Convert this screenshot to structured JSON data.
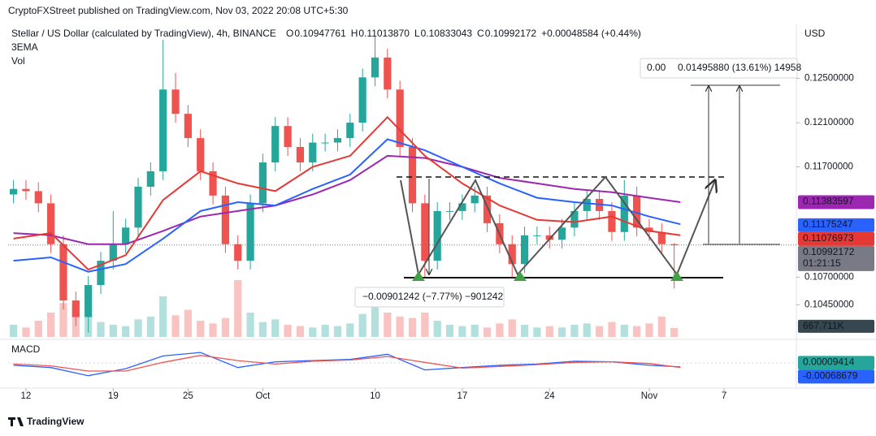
{
  "header": {
    "published": "CryptoFXStreet published on TradingView.com, Nov 03, 2022 20:08 UTC+5:30"
  },
  "chart_data": {
    "type": "candlestick",
    "title": "Stellar / US Dollar (calculated by TradingView), 4h, BINANCE",
    "ohlc_legend": [
      {
        "key": "O",
        "text": "0.10947761"
      },
      {
        "key": "H",
        "text": "0.11013870"
      },
      {
        "key": "L",
        "text": "0.10833043"
      },
      {
        "key": "C",
        "text": "0.10992172"
      }
    ],
    "change": "+0.00048584 (+0.44%)",
    "indicator_label": "3EMA",
    "volume_label": "Vol",
    "currency": "USD",
    "up_color": "#26a69a",
    "down_color": "#ef5350",
    "x": [
      -1,
      0,
      1,
      2,
      3,
      4,
      5,
      6,
      7,
      8,
      9,
      10,
      11,
      12,
      13,
      14,
      15,
      16,
      17,
      18,
      19,
      20,
      21,
      22,
      23,
      24,
      25,
      26,
      27,
      28,
      29,
      30,
      31,
      32,
      33,
      34,
      35,
      36,
      37,
      38,
      39,
      40,
      41,
      42,
      43,
      44,
      45,
      46,
      47,
      48,
      49,
      50,
      51,
      52
    ],
    "open": [
      0.1145,
      0.115,
      0.1148,
      0.1137,
      0.11,
      0.1049,
      0.1034,
      0.1063,
      0.1085,
      0.11,
      0.1115,
      0.1152,
      0.1166,
      0.124,
      0.1218,
      0.1196,
      0.1166,
      0.1144,
      0.11,
      0.1085,
      0.1137,
      0.1174,
      0.1207,
      0.1188,
      0.1174,
      0.1192,
      0.1192,
      0.1196,
      0.121,
      0.1251,
      0.1269,
      0.124,
      0.1188,
      0.1137,
      0.1085,
      0.113,
      0.113,
      0.1137,
      0.1144,
      0.1119,
      0.11,
      0.1082,
      0.1108,
      0.1108,
      0.1104,
      0.1115,
      0.113,
      0.1141,
      0.113,
      0.1111,
      0.1144,
      0.1115,
      0.1111,
      0.11
    ],
    "high": [
      0.1158,
      0.1158,
      0.1156,
      0.1145,
      0.1108,
      0.1057,
      0.1071,
      0.1093,
      0.113,
      0.1123,
      0.116,
      0.1174,
      0.1285,
      0.1255,
      0.1226,
      0.1204,
      0.1174,
      0.1152,
      0.1108,
      0.1145,
      0.1182,
      0.1215,
      0.1215,
      0.1196,
      0.12,
      0.12,
      0.1204,
      0.1218,
      0.1259,
      0.1288,
      0.1277,
      0.1248,
      0.1196,
      0.1145,
      0.1138,
      0.1138,
      0.1145,
      0.1152,
      0.1152,
      0.1127,
      0.1108,
      0.1116,
      0.1116,
      0.1116,
      0.1123,
      0.1138,
      0.1149,
      0.1149,
      0.1138,
      0.1158,
      0.1152,
      0.1123,
      0.1119,
      0.1101
    ],
    "low": [
      0.1137,
      0.114,
      0.1129,
      0.1092,
      0.1041,
      0.1026,
      0.102,
      0.1055,
      0.1077,
      0.1092,
      0.1107,
      0.1144,
      0.1158,
      0.121,
      0.1188,
      0.1158,
      0.1136,
      0.1092,
      0.1077,
      0.1077,
      0.1129,
      0.1166,
      0.118,
      0.1166,
      0.1166,
      0.1184,
      0.1184,
      0.1188,
      0.1202,
      0.1243,
      0.1232,
      0.118,
      0.1129,
      0.107,
      0.1077,
      0.1122,
      0.1122,
      0.1129,
      0.1111,
      0.1092,
      0.107,
      0.1074,
      0.11,
      0.1096,
      0.1096,
      0.1107,
      0.1122,
      0.1122,
      0.1103,
      0.1103,
      0.1107,
      0.1103,
      0.1092,
      0.106
    ],
    "close": [
      0.115,
      0.1148,
      0.1137,
      0.11,
      0.1049,
      0.1034,
      0.1063,
      0.1085,
      0.11,
      0.1115,
      0.1152,
      0.1166,
      0.124,
      0.1218,
      0.1196,
      0.1166,
      0.1144,
      0.11,
      0.1085,
      0.1137,
      0.1174,
      0.1207,
      0.1188,
      0.1174,
      0.1192,
      0.1192,
      0.1196,
      0.121,
      0.1251,
      0.1269,
      0.124,
      0.1188,
      0.1137,
      0.1085,
      0.113,
      0.113,
      0.1137,
      0.1144,
      0.1119,
      0.11,
      0.1082,
      0.1108,
      0.1108,
      0.1104,
      0.1115,
      0.113,
      0.1141,
      0.113,
      0.1111,
      0.1144,
      0.1115,
      0.1111,
      0.11,
      0.1099
    ],
    "xlim": [
      -1.43,
      61.8
    ],
    "xticks": [
      {
        "value": 0,
        "label": "12"
      },
      {
        "value": 7,
        "label": "19"
      },
      {
        "value": 13,
        "label": "25"
      },
      {
        "value": 19,
        "label": "Oct"
      },
      {
        "value": 28,
        "label": "10"
      },
      {
        "value": 35,
        "label": "17"
      },
      {
        "value": 42,
        "label": "24"
      },
      {
        "value": 50,
        "label": "Nov"
      },
      {
        "value": 56,
        "label": "7"
      }
    ],
    "ylim": [
      0.1016,
      0.1299
    ],
    "yticks": [
      {
        "value": 0.125,
        "label": "0.12500000"
      },
      {
        "value": 0.121,
        "label": "0.12100000"
      },
      {
        "value": 0.117,
        "label": "0.11700000"
      },
      {
        "value": 0.107,
        "label": "0.10700000"
      },
      {
        "value": 0.1045,
        "label": "0.10450000"
      }
    ],
    "last_price": 0.10992172,
    "last_price_color": "#787b86",
    "countdown": "01:21:15",
    "ema": [
      {
        "color": "#9c27b0",
        "x": [
          -1,
          2,
          5,
          8,
          11,
          14,
          17,
          20,
          23,
          26,
          29,
          32,
          35,
          38,
          41,
          44,
          47,
          50,
          52.5
        ],
        "values": [
          0.111,
          0.1108,
          0.11,
          0.11,
          0.1112,
          0.1125,
          0.113,
          0.1135,
          0.1145,
          0.1158,
          0.118,
          0.1178,
          0.117,
          0.116,
          0.1155,
          0.115,
          0.1147,
          0.1142,
          0.1138
        ],
        "last": 0.11383597
      },
      {
        "color": "#2962ff",
        "x": [
          -1,
          2,
          5,
          8,
          11,
          14,
          17,
          20,
          23,
          26,
          29,
          32,
          35,
          38,
          41,
          44,
          47,
          50,
          52.5
        ],
        "values": [
          0.1085,
          0.1088,
          0.1075,
          0.1082,
          0.1105,
          0.113,
          0.1138,
          0.1135,
          0.115,
          0.1163,
          0.1195,
          0.1185,
          0.117,
          0.1155,
          0.1142,
          0.1138,
          0.1135,
          0.1125,
          0.1118
        ],
        "last": 0.11175247
      },
      {
        "color": "#e53935",
        "x": [
          -1,
          2,
          5,
          8,
          11,
          14,
          17,
          20,
          23,
          26,
          29,
          32,
          35,
          38,
          41,
          44,
          47,
          50,
          52.5
        ],
        "values": [
          0.1105,
          0.111,
          0.1077,
          0.109,
          0.114,
          0.1166,
          0.1155,
          0.1148,
          0.117,
          0.118,
          0.1215,
          0.118,
          0.1155,
          0.1135,
          0.1122,
          0.112,
          0.1125,
          0.1112,
          0.1108
        ],
        "last": 0.11076973
      }
    ],
    "volume": {
      "values": [
        900000,
        700000,
        1200000,
        1800000,
        2500000,
        2400000,
        1500000,
        1100000,
        900000,
        800000,
        1300000,
        1500000,
        3000000,
        1600000,
        2000000,
        1200000,
        1000000,
        1400000,
        4200000,
        1800000,
        1100000,
        1300000,
        900000,
        800000,
        700000,
        900000,
        800000,
        1000000,
        1700000,
        2500000,
        1800000,
        1500000,
        1400000,
        1800000,
        1200000,
        900000,
        800000,
        900000,
        700000,
        1000000,
        1300000,
        900000,
        700000,
        800000,
        700000,
        900000,
        1000000,
        800000,
        1100000,
        900000,
        800000,
        1000000,
        1500000,
        667711
      ],
      "ylim": [
        0,
        6000000
      ],
      "last": {
        "value": 667711,
        "label": "667.711K"
      },
      "badge_color": "#37474f"
    },
    "macd": {
      "label": "MACD",
      "x": [
        -1,
        2,
        5,
        8,
        11,
        14,
        17,
        20,
        23,
        26,
        29,
        32,
        35,
        38,
        41,
        44,
        47,
        50,
        52.5
      ],
      "macd": {
        "color": "#2962ff",
        "values": [
          -0.0004,
          -0.0008,
          -0.0022,
          -0.001,
          0.0012,
          0.0018,
          -0.0008,
          0.0002,
          0.0004,
          0.0006,
          0.0015,
          -0.0012,
          -0.0008,
          -0.0004,
          -0.0002,
          0.0003,
          0.0002,
          -0.0004,
          -0.00068679
        ]
      },
      "signal": {
        "color": "#ef5350",
        "values": [
          -0.0002,
          -0.0005,
          -0.0014,
          -0.0014,
          0.0001,
          0.0013,
          0.0004,
          -0.0002,
          0.0003,
          0.0005,
          0.0011,
          0.0001,
          -0.0009,
          -0.0006,
          -0.0003,
          0.0001,
          0.0002,
          -0.0001,
          -0.00078
        ]
      },
      "ylim": [
        -0.0035,
        0.0035
      ],
      "badges": [
        {
          "value": 9.414e-05,
          "color": "#26a69a"
        },
        {
          "value": -0.00068679,
          "color": "#2962ff"
        }
      ]
    },
    "annotations": {
      "range_up_cut": "0.00",
      "range_up": "0.01495880 (13.61%) 14958",
      "range_down": "−0.00901242 (−7.77%) −901242"
    }
  },
  "footer": "TradingView"
}
